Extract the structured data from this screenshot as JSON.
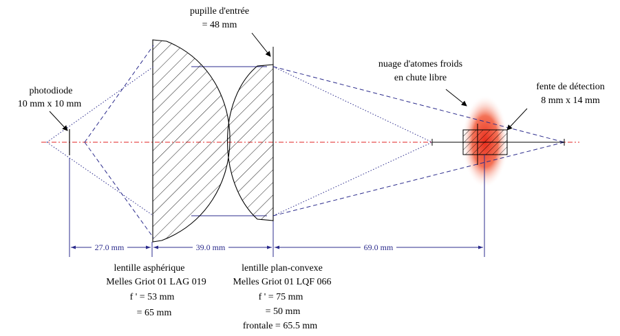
{
  "labels": {
    "entrance_pupil": {
      "line1": "pupille d'entrée",
      "line2": "= 48 mm"
    },
    "photodiode": {
      "line1": "photodiode",
      "line2": "10 mm x 10 mm"
    },
    "atom_cloud": {
      "line1": "nuage d'atomes froids",
      "line2": "en chute libre"
    },
    "detection_slit": {
      "line1": "fente de détection",
      "line2": "8 mm x 14 mm"
    }
  },
  "dimensions": [
    "27.0 mm",
    "39.0 mm",
    "69.0 mm"
  ],
  "lens_aspheric": {
    "lines": [
      "lentille asphérique",
      "Melles Griot 01 LAG 019",
      "f ' = 53 mm",
      "= 65 mm"
    ]
  },
  "lens_planoconvex": {
    "lines": [
      "lentille plan-convexe",
      "Melles Griot 01 LQF 066",
      "f ' = 75 mm",
      "= 50 mm",
      "frontale = 65.5 mm"
    ]
  },
  "colors": {
    "rays": "#2b2b8c",
    "optical_axis": "#e02020",
    "atom_cloud": "#ee2a1a",
    "lens_outline": "#000000"
  }
}
